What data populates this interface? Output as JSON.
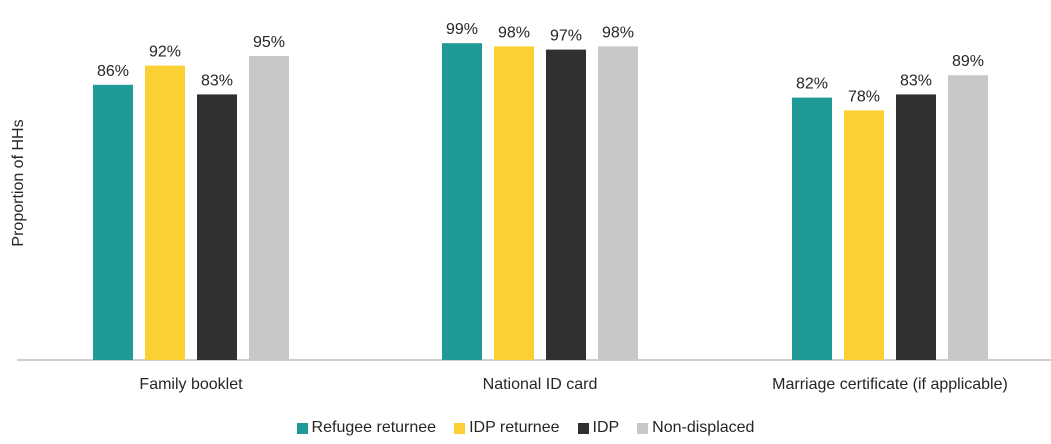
{
  "chart_data": {
    "type": "bar",
    "title": "",
    "xlabel": "",
    "ylabel": "Proportion of HHs",
    "ylim": [
      0,
      100
    ],
    "value_suffix": "%",
    "grid": false,
    "legend_position": "bottom",
    "categories": [
      "Family booklet",
      "National ID card",
      "Marriage certificate (if applicable)"
    ],
    "series": [
      {
        "name": "Refugee returnee",
        "color": "#1f9a97",
        "values": [
          86,
          99,
          82
        ]
      },
      {
        "name": "IDP returnee",
        "color": "#fccf33",
        "values": [
          92,
          98,
          78
        ]
      },
      {
        "name": "IDP",
        "color": "#2f3130",
        "values": [
          83,
          97,
          83
        ]
      },
      {
        "name": "Non-displaced",
        "color": "#c8c8c8",
        "values": [
          95,
          98,
          89
        ]
      }
    ]
  }
}
